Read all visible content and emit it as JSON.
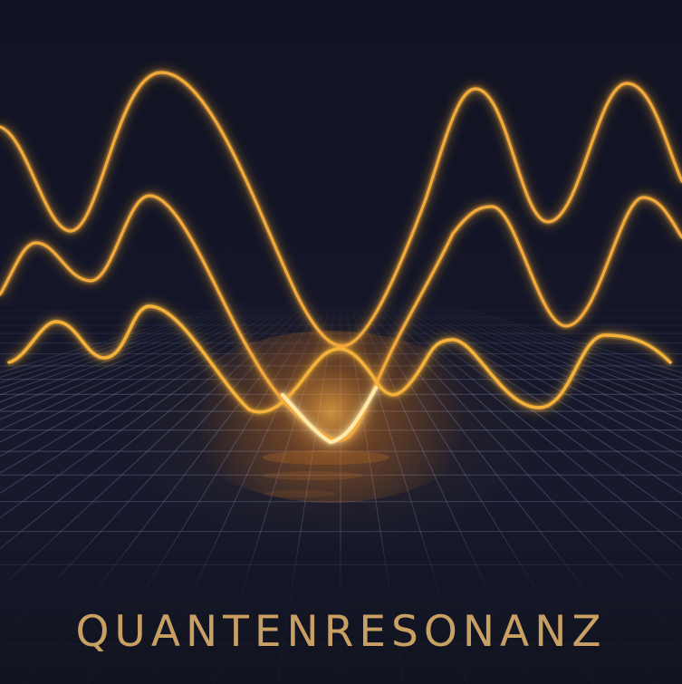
{
  "title": "QUANTENRESONANZ",
  "colors": {
    "background": "#12142a",
    "wave": "#f5b23a",
    "wave_core": "#ffe9a8",
    "grid": "#6e7398",
    "title": "#c9a063"
  },
  "scene": {
    "wave_count": 3,
    "grid": true
  }
}
